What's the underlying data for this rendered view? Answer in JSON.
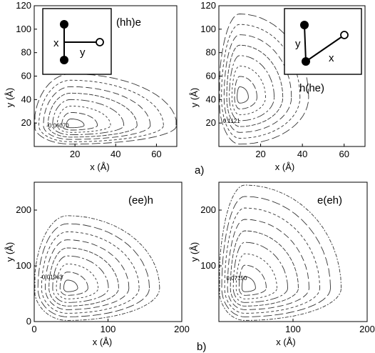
{
  "figure": {
    "part_labels": [
      "a)",
      "b)"
    ]
  },
  "chart_data": [
    {
      "type": "contour",
      "title": "(hh)e",
      "xlabel": "x (Å)",
      "ylabel": "y (Å)",
      "xlim": [
        0,
        70
      ],
      "ylim": [
        0,
        120
      ],
      "xticks": [
        20,
        40,
        60
      ],
      "yticks": [
        20,
        40,
        60,
        80,
        100,
        120
      ],
      "center": [
        18,
        18
      ],
      "extent": {
        "x": [
          0,
          70
        ],
        "y": [
          2,
          62
        ]
      },
      "levels": 8,
      "contour_label": "-0.06070",
      "contour_label_at": [
        6,
        18
      ],
      "inset": {
        "labels": [
          "x",
          "y"
        ],
        "shape": "T"
      }
    },
    {
      "type": "contour",
      "title": "h(he)",
      "xlabel": "x (Å)",
      "ylabel": "y (Å)",
      "xlim": [
        0,
        70
      ],
      "ylim": [
        0,
        120
      ],
      "xticks": [
        20,
        40,
        60
      ],
      "yticks": [
        20,
        40,
        60,
        80,
        100,
        120
      ],
      "center": [
        10,
        42
      ],
      "extent": {
        "x": [
          0,
          43
        ],
        "y": [
          2,
          113
        ]
      },
      "levels": 8,
      "contour_label": "0.1121",
      "contour_label_at": [
        2,
        22
      ],
      "inset": {
        "labels": [
          "y",
          "x"
        ],
        "shape": "V"
      }
    },
    {
      "type": "contour",
      "title": "(ee)h",
      "xlabel": "x (Å)",
      "ylabel": "y (Å)",
      "xlim": [
        0,
        200
      ],
      "ylim": [
        0,
        250
      ],
      "xticks": [
        0,
        100,
        200
      ],
      "yticks": [
        0,
        100,
        200
      ],
      "center": [
        45,
        60
      ],
      "extent": {
        "x": [
          0,
          170
        ],
        "y": [
          2,
          190
        ]
      },
      "levels": 9,
      "contour_label": "-0.01963",
      "contour_label_at": [
        8,
        80
      ]
    },
    {
      "type": "contour",
      "title": "e(eh)",
      "xlabel": "x (Å)",
      "ylabel": "y (Å)",
      "xlim": [
        0,
        200
      ],
      "ylim": [
        0,
        250
      ],
      "xticks": [
        100,
        200
      ],
      "yticks": [
        100,
        200
      ],
      "center": [
        35,
        60
      ],
      "extent": {
        "x": [
          0,
          165
        ],
        "y": [
          2,
          245
        ]
      },
      "levels": 9,
      "contour_label": "0.07150",
      "contour_label_at": [
        10,
        78
      ]
    }
  ]
}
